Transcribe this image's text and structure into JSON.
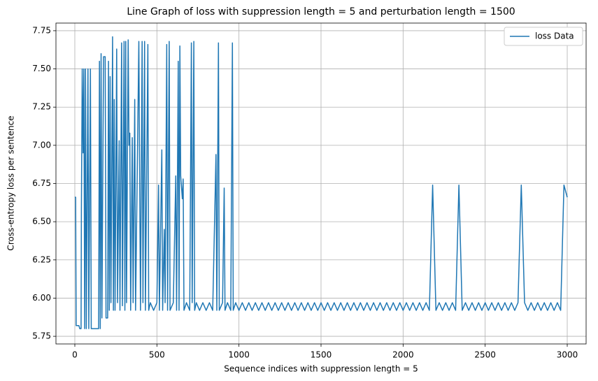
{
  "chart_data": {
    "type": "line",
    "title": "Line Graph of loss with suppression length = 5 and perturbation length = 1500",
    "x_label": "Sequence indices with suppression length = 5",
    "y_label": "Cross-entropy loss per sentence",
    "x": [
      0,
      5,
      8,
      25,
      30,
      38,
      40,
      45,
      50,
      55,
      60,
      65,
      70,
      80,
      85,
      95,
      100,
      145,
      150,
      155,
      160,
      165,
      175,
      185,
      190,
      200,
      205,
      210,
      215,
      220,
      230,
      235,
      240,
      245,
      255,
      260,
      270,
      275,
      285,
      290,
      300,
      305,
      310,
      315,
      325,
      330,
      335,
      340,
      350,
      355,
      365,
      370,
      390,
      395,
      400,
      410,
      415,
      425,
      430,
      445,
      450,
      460,
      480,
      500,
      510,
      515,
      530,
      535,
      545,
      550,
      560,
      565,
      575,
      580,
      600,
      615,
      620,
      630,
      635,
      640,
      645,
      655,
      660,
      665,
      680,
      700,
      710,
      715,
      725,
      730,
      740,
      760,
      780,
      800,
      820,
      840,
      860,
      865,
      875,
      880,
      900,
      910,
      915,
      930,
      950,
      960,
      965,
      980,
      1000,
      1020,
      1040,
      1060,
      1080,
      1100,
      1120,
      1140,
      1160,
      1180,
      1200,
      1220,
      1240,
      1260,
      1280,
      1300,
      1320,
      1340,
      1360,
      1380,
      1400,
      1420,
      1440,
      1460,
      1480,
      1500,
      1520,
      1540,
      1560,
      1580,
      1600,
      1620,
      1640,
      1660,
      1680,
      1700,
      1720,
      1740,
      1760,
      1780,
      1800,
      1820,
      1840,
      1860,
      1880,
      1900,
      1920,
      1940,
      1960,
      1980,
      2000,
      2020,
      2040,
      2060,
      2080,
      2100,
      2120,
      2140,
      2160,
      2180,
      2200,
      2220,
      2240,
      2260,
      2280,
      2300,
      2320,
      2340,
      2360,
      2380,
      2400,
      2420,
      2440,
      2460,
      2480,
      2500,
      2520,
      2540,
      2560,
      2580,
      2600,
      2620,
      2640,
      2660,
      2680,
      2700,
      2720,
      2740,
      2760,
      2780,
      2800,
      2820,
      2840,
      2860,
      2880,
      2900,
      2920,
      2940,
      2960,
      2980,
      3000
    ],
    "series": [
      {
        "name": "loss Data",
        "color": "#1f77b4",
        "values": [
          6.66,
          6.66,
          5.82,
          5.82,
          5.8,
          5.8,
          6.57,
          7.5,
          6.95,
          7.5,
          5.8,
          7.5,
          5.8,
          7.5,
          5.8,
          7.5,
          5.8,
          5.8,
          7.55,
          5.8,
          7.6,
          5.87,
          7.58,
          7.58,
          5.87,
          5.87,
          7.55,
          5.92,
          7.45,
          5.97,
          7.71,
          5.92,
          7.3,
          5.92,
          7.63,
          5.97,
          7.03,
          5.92,
          7.67,
          5.95,
          7.68,
          5.92,
          7.68,
          5.97,
          7.69,
          7.0,
          7.08,
          5.92,
          7.05,
          5.97,
          7.3,
          5.92,
          7.68,
          6.78,
          5.92,
          7.68,
          5.97,
          7.68,
          5.92,
          7.66,
          5.92,
          5.97,
          5.92,
          5.97,
          6.74,
          5.92,
          6.97,
          5.92,
          6.45,
          5.97,
          7.66,
          5.92,
          7.68,
          5.92,
          5.97,
          6.8,
          5.92,
          7.55,
          5.92,
          7.65,
          6.8,
          6.65,
          6.78,
          5.92,
          5.97,
          5.92,
          7.67,
          5.97,
          7.68,
          5.92,
          5.97,
          5.92,
          5.97,
          5.92,
          5.97,
          5.92,
          6.94,
          5.92,
          7.67,
          5.92,
          5.97,
          6.72,
          5.92,
          5.97,
          5.92,
          7.67,
          5.92,
          5.97,
          5.92,
          5.97,
          5.92,
          5.97,
          5.92,
          5.97,
          5.92,
          5.97,
          5.92,
          5.97,
          5.92,
          5.97,
          5.92,
          5.97,
          5.92,
          5.97,
          5.92,
          5.97,
          5.92,
          5.97,
          5.92,
          5.97,
          5.92,
          5.97,
          5.92,
          5.97,
          5.92,
          5.97,
          5.92,
          5.97,
          5.92,
          5.97,
          5.92,
          5.97,
          5.92,
          5.97,
          5.92,
          5.97,
          5.92,
          5.97,
          5.92,
          5.97,
          5.92,
          5.97,
          5.92,
          5.97,
          5.92,
          5.97,
          5.92,
          5.97,
          5.92,
          5.97,
          5.92,
          5.97,
          5.92,
          5.97,
          5.92,
          5.97,
          5.92,
          6.74,
          5.92,
          5.97,
          5.92,
          5.97,
          5.92,
          5.97,
          5.92,
          6.74,
          5.92,
          5.97,
          5.92,
          5.97,
          5.92,
          5.97,
          5.92,
          5.97,
          5.92,
          5.97,
          5.92,
          5.97,
          5.92,
          5.97,
          5.92,
          5.97,
          5.92,
          5.97,
          6.74,
          5.97,
          5.92,
          5.97,
          5.92,
          5.97,
          5.92,
          5.97,
          5.92,
          5.97,
          5.92,
          5.97,
          5.92,
          6.74,
          6.66
        ]
      }
    ],
    "xlim": [
      -115,
      3115
    ],
    "xticks": [
      0,
      500,
      1000,
      1500,
      2000,
      2500,
      3000
    ],
    "ylim": [
      5.7,
      7.8
    ],
    "yticks": [
      5.75,
      {
        "value": 6,
        "label": "6.00"
      },
      6.25,
      {
        "value": 6.5,
        "label": "6.50"
      },
      6.75,
      {
        "value": 7,
        "label": "7.00"
      },
      7.25,
      {
        "value": 7.5,
        "label": "7.50"
      },
      7.75
    ],
    "grid": true,
    "legend": "upper right"
  }
}
